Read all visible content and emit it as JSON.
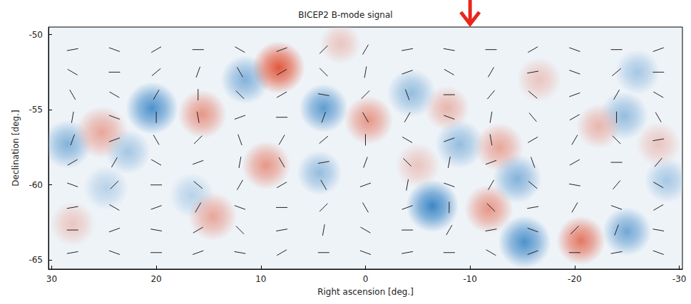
{
  "chart_data": {
    "type": "map",
    "title": "BICEP2 B-mode signal",
    "x_label": "Right ascension [deg.]",
    "y_label": "Declination [deg.]",
    "xlim": [
      30.3,
      -30.3
    ],
    "ylim": [
      -65.6,
      -49.5
    ],
    "xticks": [
      30,
      20,
      10,
      0,
      -10,
      -20,
      -30
    ],
    "yticks": [
      -50,
      -55,
      -60,
      -65
    ],
    "color_range": [
      -1,
      1
    ],
    "colormap": [
      "#3b86c6",
      "#eef3f8",
      "#e2583c"
    ],
    "blobs": {
      "ra": [
        28.5,
        25.2,
        22.7,
        20.4,
        15.6,
        11.5,
        8.3,
        9.5,
        4.0,
        4.4,
        -0.3,
        16.6,
        14.6,
        24.8,
        28.0,
        -4.4,
        -7.8,
        -9.0,
        -5.0,
        -6.4,
        -11.8,
        -12.8,
        -14.5,
        -15.2,
        -20.6,
        -25.0,
        -24.7,
        -22.3,
        -16.6,
        -28.8,
        -28.0,
        -26.0,
        2.4
      ],
      "dec": [
        -57.3,
        -56.5,
        -57.8,
        -54.9,
        -55.3,
        -53.0,
        -52.2,
        -58.7,
        -54.9,
        -59.2,
        -55.7,
        -60.7,
        -62.1,
        -60.2,
        -62.6,
        -53.9,
        -54.9,
        -57.3,
        -58.7,
        -61.4,
        -61.6,
        -57.5,
        -59.6,
        -63.8,
        -63.7,
        -63.1,
        -55.4,
        -56.1,
        -53.0,
        -59.7,
        -57.3,
        -52.5,
        -50.6
      ],
      "value": [
        -0.6,
        0.5,
        -0.4,
        -0.9,
        0.6,
        -0.6,
        1.0,
        0.6,
        -0.8,
        -0.5,
        0.6,
        -0.3,
        0.5,
        -0.3,
        0.3,
        -0.5,
        0.4,
        -0.5,
        0.3,
        -1.0,
        0.6,
        0.5,
        -0.6,
        -0.9,
        0.8,
        -0.7,
        -0.5,
        0.4,
        0.3,
        -0.4,
        0.3,
        -0.4,
        0.3
      ],
      "radius": [
        1.3,
        1.4,
        1.2,
        1.4,
        1.3,
        1.3,
        1.4,
        1.3,
        1.3,
        1.2,
        1.3,
        1.2,
        1.3,
        1.2,
        1.2,
        1.3,
        1.2,
        1.3,
        1.2,
        1.4,
        1.3,
        1.3,
        1.3,
        1.4,
        1.3,
        1.3,
        1.3,
        1.2,
        1.2,
        1.2,
        1.2,
        1.2,
        1.1
      ]
    },
    "polarization": {
      "ra": [
        28,
        24,
        20,
        16,
        12,
        8,
        4,
        0,
        -4,
        -8,
        -12,
        -16,
        -20,
        -24,
        -28
      ],
      "dec": [
        -51,
        -52.5,
        -54,
        -55.5,
        -57,
        -58.5,
        -60,
        -61.5,
        -63,
        -64.5
      ],
      "angle": [
        [
          10,
          -20,
          30,
          0,
          -30,
          20,
          45,
          60,
          10,
          -10,
          0,
          30,
          -20,
          0,
          20
        ],
        [
          -30,
          0,
          40,
          70,
          -60,
          30,
          -45,
          80,
          20,
          -30,
          60,
          10,
          -20,
          40,
          0
        ],
        [
          -60,
          -30,
          60,
          90,
          -45,
          30,
          -10,
          45,
          -70,
          0,
          50,
          -40,
          20,
          60,
          -30
        ],
        [
          80,
          -20,
          90,
          -80,
          20,
          0,
          70,
          -60,
          60,
          -20,
          80,
          -50,
          30,
          90,
          -60
        ],
        [
          70,
          20,
          -60,
          45,
          -70,
          60,
          40,
          90,
          -30,
          20,
          -80,
          30,
          60,
          -45,
          10
        ],
        [
          30,
          60,
          -30,
          20,
          80,
          -60,
          10,
          70,
          -45,
          80,
          20,
          -70,
          30,
          0,
          50
        ],
        [
          -20,
          45,
          0,
          -40,
          60,
          30,
          -60,
          20,
          80,
          -20,
          60,
          -40,
          -10,
          50,
          -30
        ],
        [
          10,
          -30,
          20,
          60,
          -20,
          0,
          45,
          -60,
          20,
          90,
          -45,
          10,
          60,
          -20,
          30
        ],
        [
          0,
          20,
          -10,
          30,
          -45,
          10,
          80,
          -30,
          0,
          60,
          10,
          -20,
          45,
          70,
          -10
        ],
        [
          10,
          -20,
          0,
          20,
          -10,
          30,
          0,
          -20,
          10,
          0,
          -30,
          20,
          0,
          10,
          -20
        ]
      ]
    },
    "annotations": [
      {
        "type": "arrow",
        "x": -10,
        "color": "#e8271c"
      }
    ]
  }
}
